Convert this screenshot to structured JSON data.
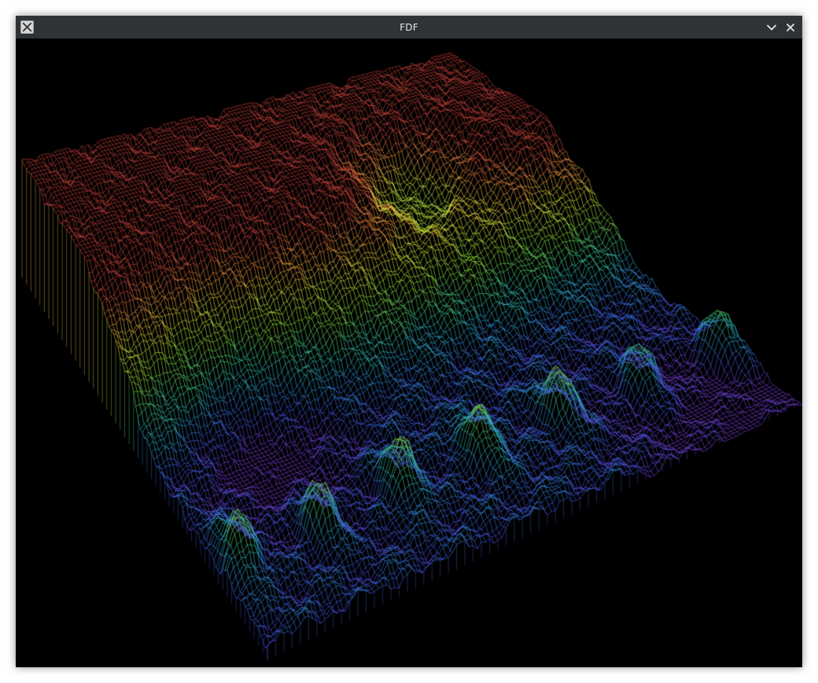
{
  "window": {
    "title": "FDF",
    "app_icon": "x11-app-icon",
    "controls": [
      {
        "name": "minimize-button",
        "icon": "chevron-down-icon"
      },
      {
        "name": "close-button",
        "icon": "close-icon"
      }
    ]
  },
  "viewport": {
    "background": "#000000",
    "content": "wireframe-terrain",
    "palette": [
      "#7b3bd6",
      "#3f58e0",
      "#2ca7d6",
      "#41d38c",
      "#8de03a",
      "#d8e43b",
      "#ef9a3c",
      "#cf4a3d",
      "#b33a35"
    ]
  }
}
